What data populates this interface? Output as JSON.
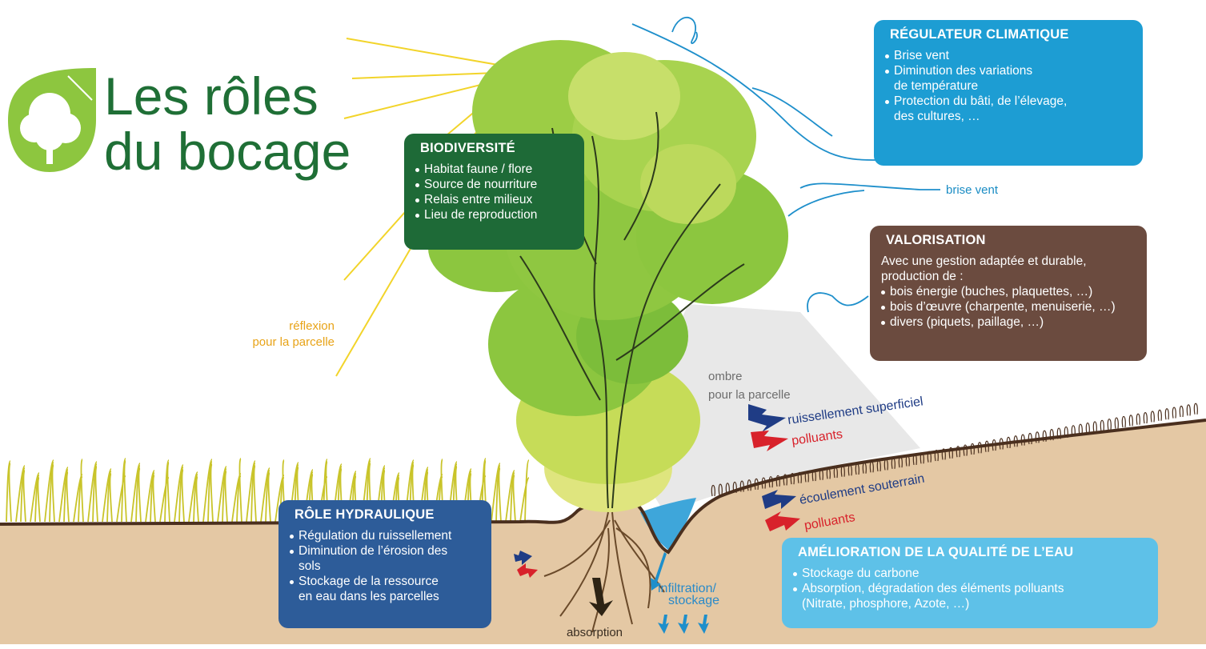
{
  "title": {
    "line1": "Les rôles",
    "line2": "du bocage"
  },
  "boxes": [
    {
      "title": "BIODIVERSITÉ",
      "color": "#1e6a37",
      "intro": [],
      "items": [
        [
          "Habitat faune / flore"
        ],
        [
          "Source de nourriture"
        ],
        [
          "Relais entre milieux"
        ],
        [
          "Lieu de reproduction"
        ]
      ]
    },
    {
      "title": "RÉGULATEUR CLIMATIQUE",
      "color": "#1d9dd3",
      "intro": [],
      "items": [
        [
          "Brise vent"
        ],
        [
          "Diminution des variations",
          "de température"
        ],
        [
          "Protection du bâti, de l’élevage,",
          "des cultures, …"
        ]
      ]
    },
    {
      "title": "VALORISATION",
      "color": "#6b4b3f",
      "intro": [
        "Avec une gestion adaptée et durable,",
        "production de :"
      ],
      "items": [
        [
          "bois énergie (buches, plaquettes, …)"
        ],
        [
          "bois d’œuvre (charpente, menuiserie, …)"
        ],
        [
          "divers (piquets, paillage, …)"
        ]
      ]
    },
    {
      "title": "RÔLE HYDRAULIQUE",
      "color": "#2d5c99",
      "intro": [],
      "items": [
        [
          "Régulation du ruissellement"
        ],
        [
          "Diminution de l’érosion des",
          "sols"
        ],
        [
          "Stockage de la ressource",
          "en eau dans les parcelles"
        ]
      ]
    },
    {
      "title": "AMÉLIORATION DE LA QUALITÉ DE L’EAU",
      "color": "#5ec1e8",
      "intro": [],
      "items": [
        [
          "Stockage du carbone"
        ],
        [
          "Absorption, dégradation des éléments polluants",
          "(Nitrate, phosphore, Azote, …)"
        ]
      ]
    }
  ],
  "labels": {
    "brise_vent": "brise vent",
    "reflexion": [
      "réflexion",
      "pour la parcelle"
    ],
    "ombre": [
      "ombre",
      "pour la parcelle"
    ],
    "ruissellement": "ruissellement superficiel",
    "polluants_surface": "polluants",
    "ecoulement": "écoulement souterrain",
    "polluants_souterrain": "polluants",
    "infiltration": [
      "infiltration/",
      "stockage"
    ],
    "absorption": "absorption"
  }
}
